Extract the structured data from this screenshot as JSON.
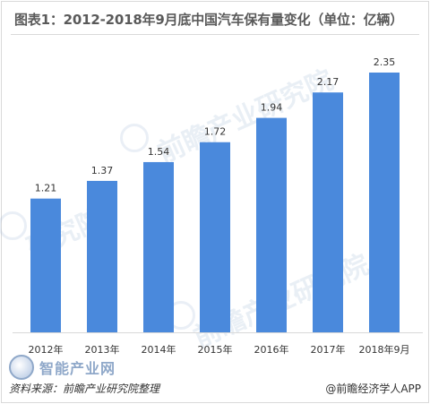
{
  "title": "图表1：2012-2018年9月底中国汽车保有量变化（单位：亿辆）",
  "chart_data": {
    "type": "bar",
    "categories": [
      "2012年",
      "2013年",
      "2014年",
      "2015年",
      "2016年",
      "2017年",
      "2018年9月"
    ],
    "values": [
      1.21,
      1.37,
      1.54,
      1.72,
      1.94,
      2.17,
      2.35
    ],
    "value_labels": [
      "1.21",
      "1.37",
      "1.54",
      "1.72",
      "1.94",
      "2.17",
      "2.35"
    ],
    "ylim": [
      0,
      2.35
    ],
    "grid": false,
    "bar_color": "#4a89dc"
  },
  "footer": {
    "source": "资料来源：前瞻产业研究院整理",
    "brand": "@前瞻经济学人APP"
  },
  "badge_text": "智能产业网",
  "watermark_text": "前瞻产业研究院"
}
